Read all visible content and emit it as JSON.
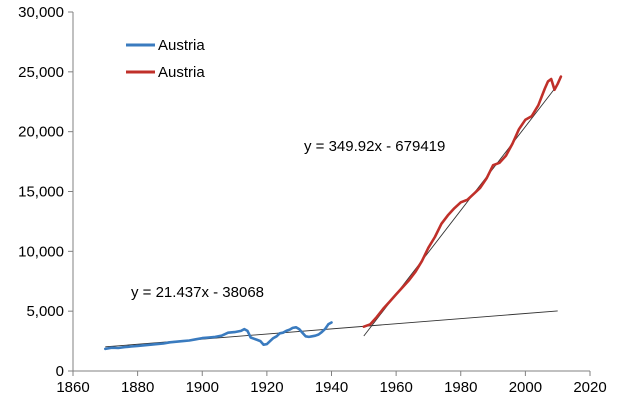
{
  "chart_data": {
    "type": "line",
    "title": "",
    "xlabel": "",
    "ylabel": "",
    "xlim": [
      1860,
      2020
    ],
    "ylim": [
      0,
      30000
    ],
    "x_ticks": [
      1860,
      1880,
      1900,
      1920,
      1940,
      1960,
      1980,
      2000,
      2020
    ],
    "y_ticks": [
      0,
      5000,
      10000,
      15000,
      20000,
      25000,
      30000
    ],
    "x_tick_labels": [
      "1860",
      "1880",
      "1900",
      "1920",
      "1940",
      "1960",
      "1980",
      "2000",
      "2020"
    ],
    "y_tick_labels": [
      "0",
      "5,000",
      "10,000",
      "15,000",
      "20,000",
      "25,000",
      "30,000"
    ],
    "grid": false,
    "legend_position": "top-left",
    "series": [
      {
        "name": "Austria",
        "color": "#3a7bbf",
        "x": [
          1870,
          1872,
          1874,
          1876,
          1878,
          1880,
          1882,
          1884,
          1886,
          1888,
          1890,
          1892,
          1894,
          1896,
          1898,
          1900,
          1902,
          1904,
          1906,
          1908,
          1910,
          1912,
          1913,
          1914,
          1915,
          1916,
          1917,
          1918,
          1919,
          1920,
          1921,
          1922,
          1923,
          1924,
          1925,
          1926,
          1927,
          1928,
          1929,
          1930,
          1931,
          1932,
          1933,
          1934,
          1935,
          1936,
          1937,
          1938,
          1939,
          1940
        ],
        "values": [
          1850,
          1950,
          1920,
          2000,
          2050,
          2100,
          2150,
          2200,
          2250,
          2300,
          2400,
          2450,
          2500,
          2550,
          2650,
          2750,
          2800,
          2850,
          2950,
          3200,
          3250,
          3350,
          3500,
          3350,
          2800,
          2700,
          2600,
          2500,
          2200,
          2250,
          2500,
          2750,
          2900,
          3150,
          3200,
          3350,
          3450,
          3600,
          3650,
          3500,
          3200,
          2900,
          2850,
          2900,
          2950,
          3050,
          3250,
          3500,
          3900,
          4050
        ]
      },
      {
        "name": "Austria",
        "color": "#c0302a",
        "x": [
          1950,
          1952,
          1954,
          1956,
          1958,
          1960,
          1962,
          1964,
          1966,
          1968,
          1970,
          1972,
          1974,
          1976,
          1978,
          1980,
          1982,
          1984,
          1986,
          1988,
          1990,
          1992,
          1994,
          1996,
          1998,
          2000,
          2002,
          2004,
          2006,
          2007,
          2008,
          2009,
          2010,
          2011
        ],
        "values": [
          3700,
          3900,
          4500,
          5200,
          5800,
          6400,
          7000,
          7600,
          8300,
          9200,
          10300,
          11200,
          12300,
          13000,
          13600,
          14100,
          14300,
          14800,
          15300,
          16100,
          17200,
          17400,
          18000,
          19000,
          20200,
          21000,
          21300,
          22200,
          23600,
          24200,
          24400,
          23500,
          24000,
          24600
        ]
      }
    ],
    "trendlines": [
      {
        "equation": "y = 21.437x - 38068",
        "slope": 21.437,
        "intercept": -38068,
        "x_range": [
          1870,
          2010
        ],
        "color": "#333333"
      },
      {
        "equation": "y = 349.92x - 679419",
        "slope": 349.92,
        "intercept": -679419,
        "x_range": [
          1950,
          2010
        ],
        "color": "#333333"
      }
    ]
  }
}
